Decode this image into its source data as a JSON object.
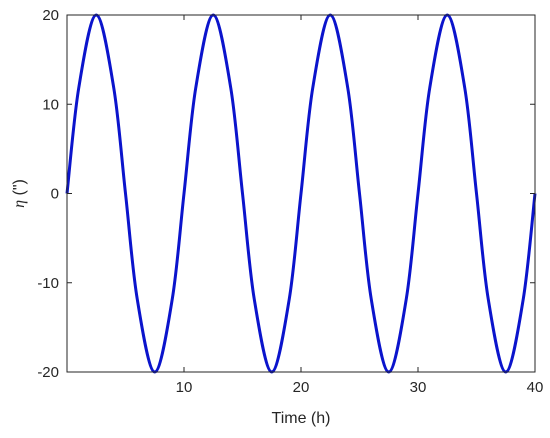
{
  "chart_data": {
    "type": "line",
    "title": "",
    "xlabel": "Time (h)",
    "ylabel": {
      "symbol": "η",
      "unit": " (\")"
    },
    "xlim": [
      0,
      40
    ],
    "ylim": [
      -20,
      20
    ],
    "xticks": [
      10,
      20,
      30,
      40
    ],
    "yticks": [
      -20,
      -10,
      0,
      10,
      20
    ],
    "xtick_labels": [
      "10",
      "20",
      "30",
      "40"
    ],
    "ytick_labels": [
      "-20",
      "-10",
      "0",
      "10",
      "20"
    ],
    "grid": false,
    "legend": "none",
    "series": [
      {
        "color": "#0b14cc",
        "x": [
          0,
          1,
          2.5,
          4,
          5,
          6,
          7.5,
          9,
          10,
          11,
          12.5,
          14,
          15,
          16,
          17.5,
          19,
          20,
          21,
          22.5,
          24,
          25,
          26,
          27.5,
          29,
          30,
          31,
          32.5,
          34,
          35,
          36,
          37.5,
          39,
          40
        ],
        "y": [
          0,
          11.8,
          20,
          11.8,
          0,
          -11.8,
          -20,
          -11.8,
          0,
          11.8,
          20,
          11.8,
          0,
          -11.8,
          -20,
          -11.8,
          0,
          11.8,
          20,
          11.8,
          0,
          -11.8,
          -20,
          -11.8,
          0,
          11.8,
          20,
          11.8,
          0,
          -11.8,
          -20,
          -11.8,
          0
        ]
      }
    ]
  }
}
